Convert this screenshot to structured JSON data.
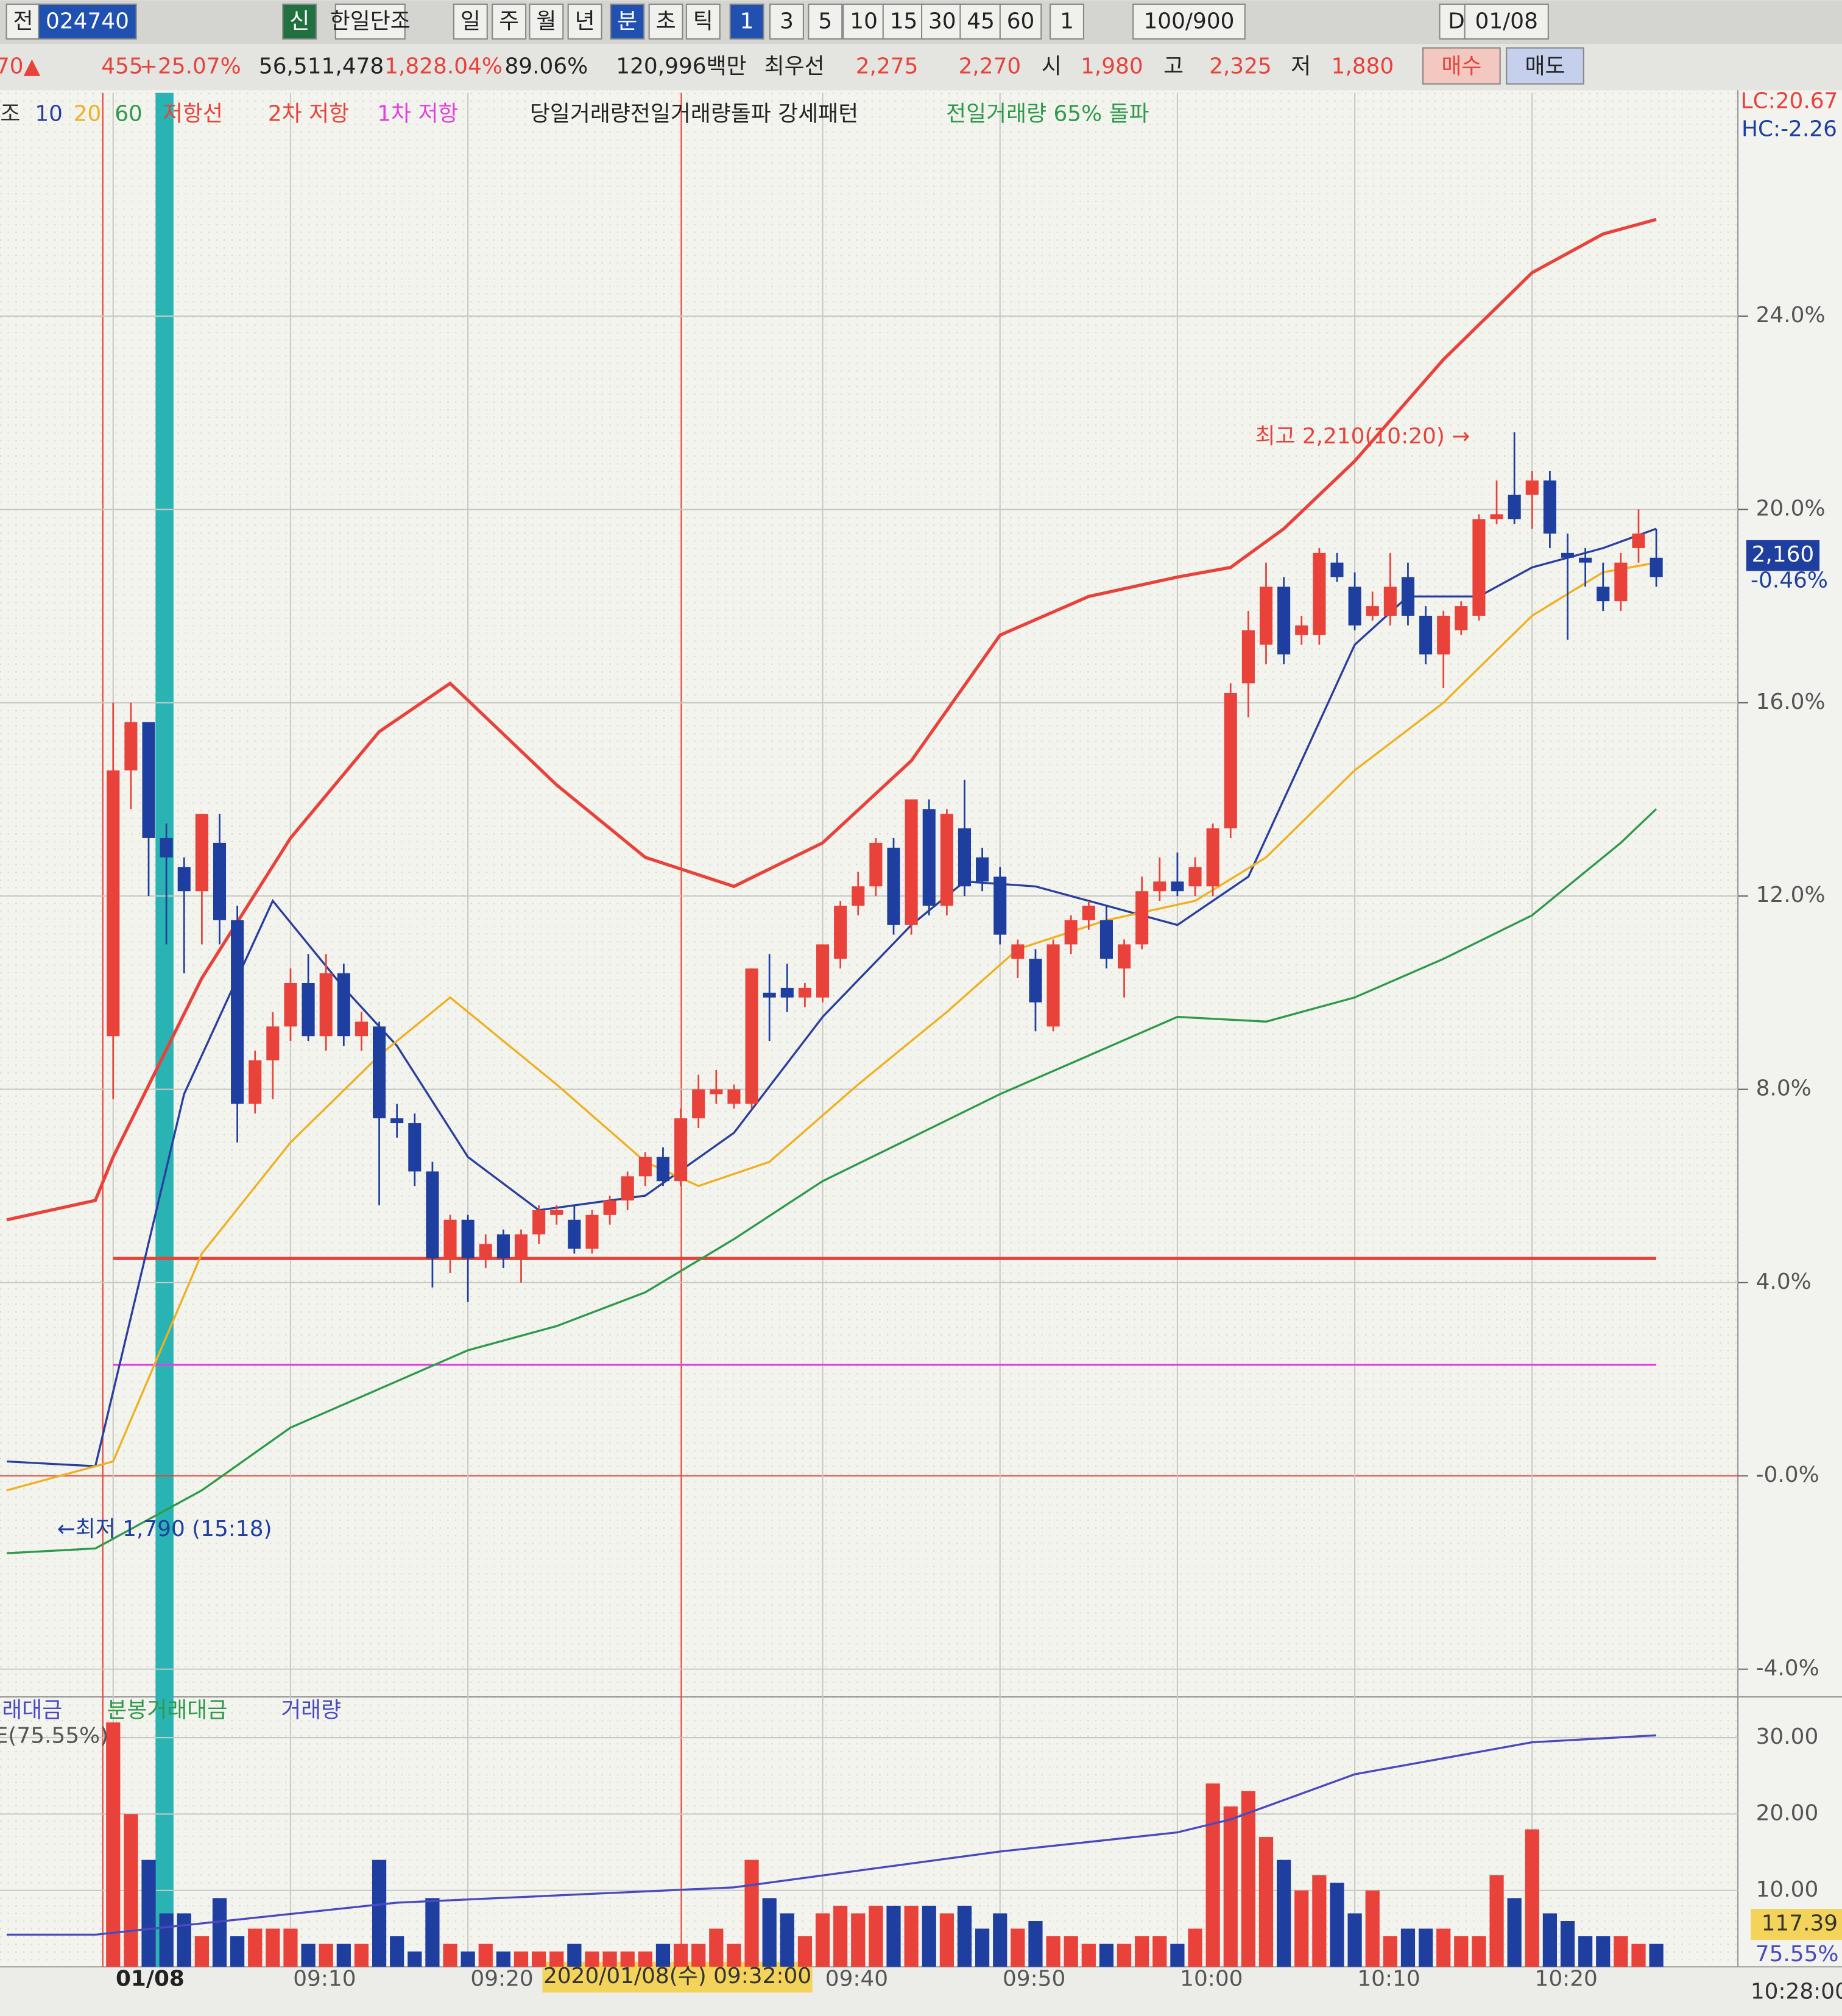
{
  "toolbar": [
    "전",
    "024740",
    "신",
    "한일단조",
    "일",
    "주",
    "월",
    "년",
    "분",
    "초",
    "틱",
    "1",
    "3",
    "5",
    "10",
    "15",
    "30",
    "45",
    "60",
    "1",
    "100/900",
    "D",
    "01/08"
  ],
  "quote_bar": [
    "70▲",
    "455",
    "+25.07%",
    "56,511,478",
    "1,828.04%",
    "89.06%",
    "120,996백만",
    "최우선",
    "2,275",
    "2,270",
    "시",
    "1,980",
    "고",
    "2,325",
    "저",
    "1,880",
    "매수",
    "매도"
  ],
  "chart_data": [
    {
      "type": "candlestick",
      "legend_texts": [
        "조",
        "저항선",
        "당일거래량전일거래량돌파 강세패턴",
        "전일거래량 65% 돌파"
      ],
      "up_color": "#e8423a",
      "down_color": "#1f3fa0",
      "xlim": [
        -6.38,
        91.6
      ],
      "xticks": [
        {
          "value": 0,
          "label": "01/08"
        },
        {
          "value": 10,
          "label": "09:10"
        },
        {
          "value": 20,
          "label": "09:20"
        },
        {
          "value": 40,
          "label": "09:40"
        },
        {
          "value": 50,
          "label": "09:50"
        },
        {
          "value": 60,
          "label": "10:00"
        },
        {
          "value": 70,
          "label": "10:10"
        },
        {
          "value": 80,
          "label": "10:20"
        }
      ],
      "ylim": [
        -4.52,
        28.62
      ],
      "yticks": [
        {
          "value": 24,
          "label": "24.0%"
        },
        {
          "value": 20,
          "label": "20.0%"
        },
        {
          "value": 16,
          "label": "16.0%"
        },
        {
          "value": 12,
          "label": "12.0%"
        },
        {
          "value": 8,
          "label": "8.0%"
        },
        {
          "value": 4,
          "label": "4.0%"
        },
        {
          "value": 0,
          "label": "-0.0%"
        },
        {
          "value": -4,
          "label": "-4.0%"
        }
      ],
      "grid": true,
      "candles": [
        [
          9.1,
          16.0,
          7.8,
          14.6
        ],
        [
          14.6,
          16.0,
          13.8,
          15.6
        ],
        [
          15.6,
          15.6,
          12.0,
          13.2
        ],
        [
          13.2,
          13.5,
          11.0,
          12.8
        ],
        [
          12.6,
          12.8,
          10.4,
          12.1
        ],
        [
          12.1,
          13.7,
          11.0,
          13.7
        ],
        [
          13.1,
          13.7,
          11.0,
          11.5
        ],
        [
          11.5,
          11.8,
          6.9,
          7.7
        ],
        [
          7.7,
          8.8,
          7.5,
          8.6
        ],
        [
          8.6,
          9.6,
          7.8,
          9.3
        ],
        [
          9.3,
          10.5,
          9.0,
          10.2
        ],
        [
          10.2,
          10.8,
          9.0,
          9.1
        ],
        [
          9.1,
          10.8,
          8.8,
          10.4
        ],
        [
          10.4,
          10.6,
          8.9,
          9.1
        ],
        [
          9.1,
          9.6,
          8.8,
          9.4
        ],
        [
          9.3,
          9.4,
          5.6,
          7.4
        ],
        [
          7.4,
          7.7,
          7.0,
          7.3
        ],
        [
          7.3,
          7.5,
          6.0,
          6.3
        ],
        [
          6.3,
          6.5,
          3.9,
          4.5
        ],
        [
          4.5,
          5.4,
          4.2,
          5.3
        ],
        [
          5.3,
          5.4,
          3.6,
          4.5
        ],
        [
          4.5,
          5.0,
          4.3,
          4.8
        ],
        [
          5.0,
          5.1,
          4.3,
          4.5
        ],
        [
          4.5,
          5.1,
          4.0,
          5.0
        ],
        [
          5.0,
          5.6,
          4.8,
          5.5
        ],
        [
          5.4,
          5.6,
          5.2,
          5.5
        ],
        [
          5.3,
          5.6,
          4.6,
          4.7
        ],
        [
          4.7,
          5.5,
          4.6,
          5.4
        ],
        [
          5.4,
          5.8,
          5.2,
          5.7
        ],
        [
          5.7,
          6.3,
          5.5,
          6.2
        ],
        [
          6.2,
          6.7,
          6.0,
          6.6
        ],
        [
          6.6,
          6.8,
          6.0,
          6.1
        ],
        [
          6.1,
          7.6,
          6.0,
          7.4
        ],
        [
          7.4,
          8.3,
          7.2,
          8.0
        ],
        [
          7.9,
          8.4,
          7.7,
          8.0
        ],
        [
          7.7,
          8.1,
          7.6,
          8.0
        ],
        [
          7.7,
          10.5,
          7.6,
          10.5
        ],
        [
          10.0,
          10.8,
          9.0,
          9.9
        ],
        [
          10.1,
          10.6,
          9.6,
          9.9
        ],
        [
          9.9,
          10.2,
          9.7,
          10.1
        ],
        [
          9.9,
          11.0,
          9.8,
          11.0
        ],
        [
          10.7,
          11.9,
          10.5,
          11.8
        ],
        [
          11.8,
          12.5,
          11.6,
          12.2
        ],
        [
          12.2,
          13.2,
          12.0,
          13.1
        ],
        [
          13.0,
          13.2,
          11.2,
          11.4
        ],
        [
          11.4,
          14.0,
          11.2,
          14.0
        ],
        [
          13.8,
          14.0,
          11.6,
          11.8
        ],
        [
          11.8,
          13.8,
          11.6,
          13.7
        ],
        [
          13.4,
          14.4,
          12.0,
          12.2
        ],
        [
          12.8,
          13.0,
          12.1,
          12.3
        ],
        [
          12.4,
          12.6,
          11.0,
          11.2
        ],
        [
          10.7,
          11.1,
          10.3,
          11.0
        ],
        [
          10.7,
          10.9,
          9.2,
          9.8
        ],
        [
          9.3,
          11.1,
          9.2,
          11.0
        ],
        [
          11.0,
          11.6,
          10.8,
          11.5
        ],
        [
          11.5,
          11.9,
          11.3,
          11.8
        ],
        [
          11.5,
          11.8,
          10.5,
          10.7
        ],
        [
          10.5,
          11.1,
          9.9,
          11.0
        ],
        [
          11.0,
          12.4,
          10.9,
          12.1
        ],
        [
          12.1,
          12.8,
          11.9,
          12.3
        ],
        [
          12.3,
          12.9,
          12.0,
          12.1
        ],
        [
          12.2,
          12.8,
          12.0,
          12.6
        ],
        [
          12.2,
          13.5,
          12.0,
          13.4
        ],
        [
          13.4,
          16.4,
          13.2,
          16.2
        ],
        [
          16.4,
          17.9,
          15.7,
          17.5
        ],
        [
          17.2,
          18.9,
          16.8,
          18.4
        ],
        [
          18.4,
          18.6,
          16.8,
          17.0
        ],
        [
          17.4,
          17.8,
          17.2,
          17.6
        ],
        [
          17.4,
          19.2,
          17.2,
          19.1
        ],
        [
          18.9,
          19.1,
          18.5,
          18.6
        ],
        [
          18.4,
          18.7,
          17.5,
          17.6
        ],
        [
          17.8,
          18.3,
          17.7,
          18.0
        ],
        [
          17.8,
          19.1,
          17.6,
          18.4
        ],
        [
          18.6,
          18.9,
          17.6,
          17.8
        ],
        [
          17.8,
          18.0,
          16.8,
          17.0
        ],
        [
          17.0,
          17.9,
          16.3,
          17.8
        ],
        [
          17.5,
          18.1,
          17.4,
          18.0
        ],
        [
          17.8,
          19.9,
          17.7,
          19.8
        ],
        [
          19.8,
          20.6,
          19.7,
          19.9
        ],
        [
          20.3,
          21.6,
          19.7,
          19.8
        ],
        [
          20.3,
          20.8,
          19.6,
          20.6
        ],
        [
          20.6,
          20.8,
          19.2,
          19.5
        ],
        [
          19.1,
          19.5,
          17.3,
          19.0
        ],
        [
          19.0,
          19.2,
          18.4,
          18.9
        ],
        [
          18.4,
          18.9,
          17.9,
          18.1
        ],
        [
          18.1,
          19.1,
          17.9,
          18.9
        ],
        [
          19.2,
          20.0,
          18.9,
          19.5
        ],
        [
          19.0,
          19.6,
          18.4,
          18.6
        ]
      ],
      "series": [
        {
          "name": "10",
          "color": "#2a3f9e",
          "x": [
            -6,
            -1,
            4,
            9,
            13,
            16,
            20,
            24,
            30,
            35,
            40,
            45,
            48,
            52,
            56,
            60,
            64,
            67,
            70,
            73,
            77,
            80,
            84,
            87
          ],
          "values": [
            0.3,
            0.2,
            7.9,
            11.9,
            10.1,
            8.9,
            6.6,
            5.5,
            5.8,
            7.1,
            9.5,
            11.4,
            12.3,
            12.2,
            11.8,
            11.4,
            12.4,
            14.8,
            17.2,
            18.2,
            18.2,
            18.8,
            19.2,
            19.6
          ]
        },
        {
          "name": "20",
          "color": "#f0b020",
          "x": [
            -6,
            0,
            5,
            10,
            15,
            19,
            25,
            30,
            33,
            37,
            42,
            47,
            51,
            56,
            61,
            65,
            70,
            75,
            80,
            84,
            87
          ],
          "values": [
            -0.3,
            0.3,
            4.6,
            6.9,
            8.7,
            9.9,
            8.1,
            6.5,
            6.0,
            6.5,
            8.1,
            9.6,
            10.9,
            11.5,
            11.9,
            12.8,
            14.6,
            16.0,
            17.8,
            18.7,
            18.9
          ]
        },
        {
          "name": "60",
          "color": "#2e9a4a",
          "x": [
            -6,
            -1,
            5,
            10,
            15,
            20,
            25,
            30,
            35,
            40,
            45,
            50,
            55,
            60,
            65,
            70,
            75,
            80,
            85,
            87
          ],
          "values": [
            -1.6,
            -1.5,
            -0.3,
            1.0,
            1.8,
            2.6,
            3.1,
            3.8,
            4.9,
            6.1,
            7.0,
            7.9,
            8.7,
            9.5,
            9.4,
            9.9,
            10.7,
            11.6,
            13.1,
            13.8
          ]
        },
        {
          "color": "#e8423a",
          "x": [
            -6,
            -1,
            0,
            5,
            10,
            15,
            19,
            25,
            30,
            35,
            40,
            45,
            50,
            55,
            60,
            63,
            66,
            70,
            75,
            80,
            84,
            87
          ],
          "values": [
            5.3,
            5.7,
            6.6,
            10.3,
            13.2,
            15.4,
            16.4,
            14.3,
            12.8,
            12.2,
            13.1,
            14.8,
            17.4,
            18.2,
            18.6,
            18.8,
            19.6,
            21.0,
            23.1,
            24.9,
            25.7,
            26.0
          ]
        }
      ],
      "levels": [
        {
          "name": "2차 저항",
          "color": "#e8423a",
          "value": 4.5
        },
        {
          "name": "1차 저항",
          "color": "#e040e0",
          "value": 2.3
        }
      ],
      "annotations": [
        "최고 2,210(10:20) →",
        "←최저 1,790 (15:18)",
        "LC:20.67",
        "HC:-2.26",
        "2,160",
        "-0.46%",
        "2020/01/08(수) 09:32:00",
        "10:28:00"
      ]
    },
    {
      "type": "bar",
      "legend_texts": [
        "래대금",
        "분봉거래대금",
        "거래량",
        "E(75.55%)"
      ],
      "values": [
        32,
        20,
        14,
        7,
        7,
        4,
        9,
        4,
        5,
        5,
        5,
        3,
        3,
        3,
        3,
        14,
        4,
        2,
        9,
        3,
        2,
        3,
        2,
        2,
        2,
        2,
        3,
        2,
        2,
        2,
        2,
        3,
        3,
        3,
        5,
        3,
        14,
        9,
        7,
        4,
        7,
        8,
        7,
        8,
        8,
        8,
        8,
        7,
        8,
        5,
        7,
        5,
        6,
        4,
        4,
        3,
        3,
        3,
        4,
        4,
        3,
        5,
        24,
        21,
        23,
        17,
        14,
        10,
        12,
        11,
        7,
        10,
        4,
        5,
        5,
        5,
        4,
        4,
        12,
        9,
        18,
        7,
        6,
        4,
        4,
        4,
        3,
        3
      ],
      "ylim": [
        0,
        35
      ],
      "yticks": [
        {
          "value": 30,
          "label": "30.00"
        },
        {
          "value": 20,
          "label": "20.00"
        },
        {
          "value": 10,
          "label": "10.00"
        }
      ],
      "line": {
        "color": "#4a4ac0",
        "x": [
          -6,
          -1,
          16,
          35,
          50,
          60,
          63,
          70,
          80,
          87
        ],
        "values": [
          4.2,
          4.2,
          8.4,
          10.4,
          15.1,
          17.6,
          19.3,
          25.2,
          29.4,
          30.3
        ]
      },
      "annotations": [
        "117.39",
        "75.55%"
      ]
    }
  ]
}
